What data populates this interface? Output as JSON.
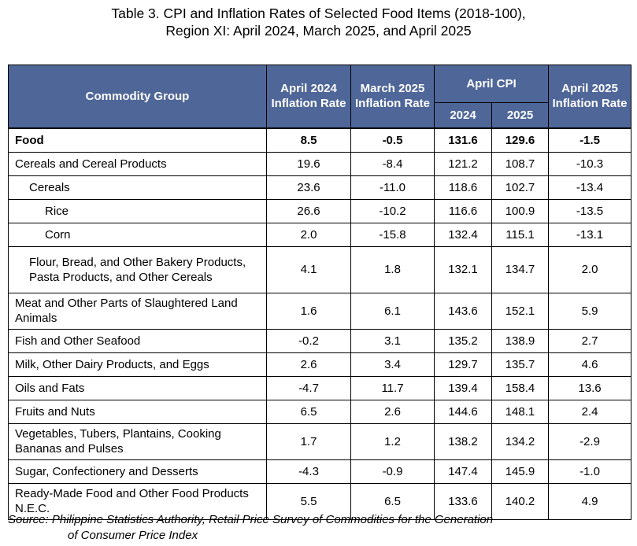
{
  "title": {
    "line1": "Table 3. CPI and Inflation Rates of Selected Food Items (2018-100),",
    "line2": "Region XI: April 2024, March 2025, and April 2025"
  },
  "headers": {
    "commodity": "Commodity Group",
    "apr2024": "April 2024 Inflation Rate",
    "mar2025": "March 2025 Inflation Rate",
    "aprcpi": "April CPI",
    "cpi2024": "2024",
    "cpi2025": "2025",
    "apr2025": "April 2025 Inflation Rate"
  },
  "rows": [
    {
      "name": "Food",
      "a24": "8.5",
      "m25": "-0.5",
      "c24": "131.6",
      "c25": "129.6",
      "a25": "-1.5"
    },
    {
      "name": "Cereals and Cereal Products",
      "a24": "19.6",
      "m25": "-8.4",
      "c24": "121.2",
      "c25": "108.7",
      "a25": "-10.3"
    },
    {
      "name": "Cereals",
      "a24": "23.6",
      "m25": "-11.0",
      "c24": "118.6",
      "c25": "102.7",
      "a25": "-13.4"
    },
    {
      "name": "Rice",
      "a24": "26.6",
      "m25": "-10.2",
      "c24": "116.6",
      "c25": "100.9",
      "a25": "-13.5"
    },
    {
      "name": "Corn",
      "a24": "2.0",
      "m25": "-15.8",
      "c24": "132.4",
      "c25": "115.1",
      "a25": "-13.1"
    },
    {
      "name": "Flour, Bread, and Other Bakery Products, Pasta Products, and Other Cereals",
      "a24": "4.1",
      "m25": "1.8",
      "c24": "132.1",
      "c25": "134.7",
      "a25": "2.0"
    },
    {
      "name": "Meat and Other Parts of Slaughtered Land Animals",
      "a24": "1.6",
      "m25": "6.1",
      "c24": "143.6",
      "c25": "152.1",
      "a25": "5.9"
    },
    {
      "name": "Fish and Other Seafood",
      "a24": "-0.2",
      "m25": "3.1",
      "c24": "135.2",
      "c25": "138.9",
      "a25": "2.7"
    },
    {
      "name": "Milk, Other Dairy Products, and Eggs",
      "a24": "2.6",
      "m25": "3.4",
      "c24": "129.7",
      "c25": "135.7",
      "a25": "4.6"
    },
    {
      "name": "Oils and Fats",
      "a24": "-4.7",
      "m25": "11.7",
      "c24": "139.4",
      "c25": "158.4",
      "a25": "13.6"
    },
    {
      "name": "Fruits and Nuts",
      "a24": "6.5",
      "m25": "2.6",
      "c24": "144.6",
      "c25": "148.1",
      "a25": "2.4"
    },
    {
      "name": "Vegetables, Tubers, Plantains, Cooking Bananas and Pulses",
      "a24": "1.7",
      "m25": "1.2",
      "c24": "138.2",
      "c25": "134.2",
      "a25": "-2.9"
    },
    {
      "name": "Sugar, Confectionery and Desserts",
      "a24": "-4.3",
      "m25": "-0.9",
      "c24": "147.4",
      "c25": "145.9",
      "a25": "-1.0"
    },
    {
      "name": "Ready-Made Food and Other Food Products N.E.C.",
      "a24": "5.5",
      "m25": "6.5",
      "c24": "133.6",
      "c25": "140.2",
      "a25": "4.9"
    }
  ],
  "source": {
    "line1": "Source: Philippine Statistics Authority, Retail Price Survey of Commodities for the Generation",
    "line2": "of Consumer Price Index"
  }
}
